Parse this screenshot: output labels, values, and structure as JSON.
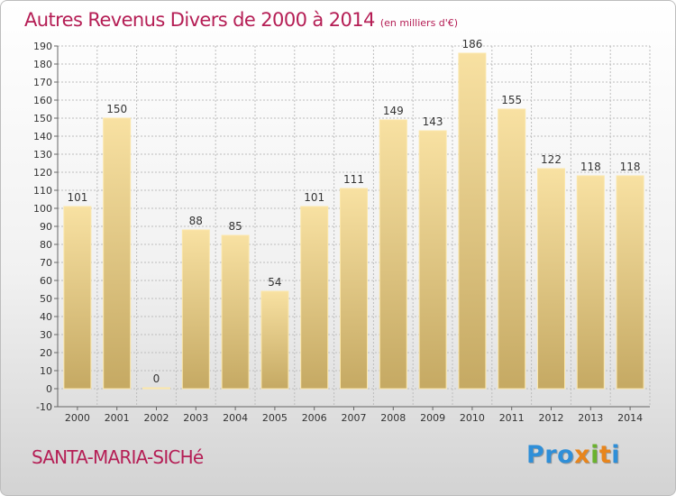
{
  "header": {
    "title": "Autres Revenus Divers de 2000 à 2014",
    "unit": "(en milliers d'€)"
  },
  "footer": {
    "commune": "SANTA-MARIA-SICHé",
    "logo_parts": [
      {
        "text": "Pro",
        "color": "#2f8fd8"
      },
      {
        "text": "x",
        "color": "#e8851c"
      },
      {
        "text": "i",
        "color": "#6ab22e"
      },
      {
        "text": "t",
        "color": "#e8851c"
      },
      {
        "text": "i",
        "color": "#2f8fd8"
      }
    ]
  },
  "colors": {
    "accent": "#b51e55",
    "bar_top": "#f8e1a2",
    "bar_bottom": "#c5a963",
    "grid": "#bdbdbd"
  },
  "chart_data": {
    "type": "bar",
    "categories": [
      "2000",
      "2001",
      "2002",
      "2003",
      "2004",
      "2005",
      "2006",
      "2007",
      "2008",
      "2009",
      "2010",
      "2011",
      "2012",
      "2013",
      "2014"
    ],
    "values": [
      101,
      150,
      0,
      88,
      85,
      54,
      101,
      111,
      149,
      143,
      186,
      155,
      122,
      118,
      118
    ],
    "title": "Autres Revenus Divers de 2000 à 2014",
    "subtitle": "(en milliers d'€)",
    "ylim": [
      -10,
      190
    ],
    "yticks": [
      -10,
      0,
      10,
      20,
      30,
      40,
      50,
      60,
      70,
      80,
      90,
      100,
      110,
      120,
      130,
      140,
      150,
      160,
      170,
      180,
      190
    ],
    "grid": true,
    "grid_axis": "y",
    "data_labels": true,
    "legend": "none"
  }
}
